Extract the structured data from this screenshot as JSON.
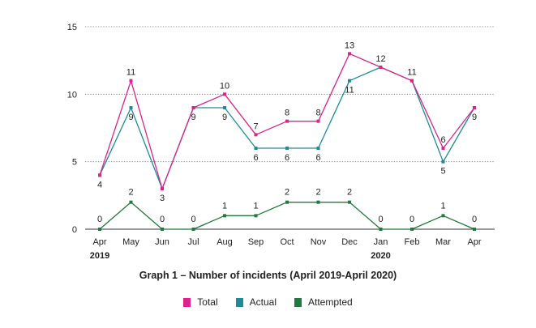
{
  "chart_data": {
    "type": "line",
    "title": "Graph 1 – Number of incidents (April 2019-April 2020)",
    "categories": [
      "Apr",
      "May",
      "Jun",
      "Jul",
      "Aug",
      "Sep",
      "Oct",
      "Nov",
      "Dec",
      "Jan",
      "Feb",
      "Mar",
      "Apr"
    ],
    "year_labels": [
      {
        "index": 0,
        "label": "2019"
      },
      {
        "index": 9,
        "label": "2020"
      }
    ],
    "series": [
      {
        "name": "Total",
        "color": "#e0218a",
        "values": [
          4,
          11,
          3,
          9,
          10,
          7,
          8,
          8,
          13,
          12,
          11,
          6,
          9
        ]
      },
      {
        "name": "Actual",
        "color": "#1e8c96",
        "values": [
          4,
          9,
          3,
          9,
          9,
          6,
          6,
          6,
          11,
          12,
          11,
          5,
          9
        ]
      },
      {
        "name": "Attempted",
        "color": "#1e7a3e",
        "values": [
          0,
          2,
          0,
          0,
          1,
          1,
          2,
          2,
          2,
          0,
          0,
          1,
          0
        ]
      }
    ],
    "y_ticks": [
      0,
      5,
      10,
      15
    ],
    "ylim": [
      0,
      15
    ],
    "grid": "horizontal-dotted",
    "legend_position": "bottom",
    "data_labels": [
      {
        "series": 0,
        "index": 0,
        "text": ""
      },
      {
        "series": 0,
        "index": 1,
        "text": "11"
      },
      {
        "series": 0,
        "index": 2,
        "text": ""
      },
      {
        "series": 0,
        "index": 3,
        "text": ""
      },
      {
        "series": 0,
        "index": 4,
        "text": "10"
      },
      {
        "series": 0,
        "index": 5,
        "text": "7"
      },
      {
        "series": 0,
        "index": 6,
        "text": "8"
      },
      {
        "series": 0,
        "index": 7,
        "text": "8"
      },
      {
        "series": 0,
        "index": 8,
        "text": "13"
      },
      {
        "series": 0,
        "index": 9,
        "text": "12"
      },
      {
        "series": 0,
        "index": 10,
        "text": "11"
      },
      {
        "series": 0,
        "index": 11,
        "text": "6"
      },
      {
        "series": 0,
        "index": 12,
        "text": ""
      },
      {
        "series": 1,
        "index": 0,
        "text": "4"
      },
      {
        "series": 1,
        "index": 1,
        "text": "9"
      },
      {
        "series": 1,
        "index": 2,
        "text": "3"
      },
      {
        "series": 1,
        "index": 3,
        "text": "9"
      },
      {
        "series": 1,
        "index": 4,
        "text": "9"
      },
      {
        "series": 1,
        "index": 5,
        "text": "6"
      },
      {
        "series": 1,
        "index": 6,
        "text": "6"
      },
      {
        "series": 1,
        "index": 7,
        "text": "6"
      },
      {
        "series": 1,
        "index": 8,
        "text": "11"
      },
      {
        "series": 1,
        "index": 9,
        "text": ""
      },
      {
        "series": 1,
        "index": 10,
        "text": ""
      },
      {
        "series": 1,
        "index": 11,
        "text": "5"
      },
      {
        "series": 1,
        "index": 12,
        "text": "9"
      },
      {
        "series": 2,
        "index": 0,
        "text": "0"
      },
      {
        "series": 2,
        "index": 1,
        "text": "2"
      },
      {
        "series": 2,
        "index": 2,
        "text": "0"
      },
      {
        "series": 2,
        "index": 3,
        "text": "0"
      },
      {
        "series": 2,
        "index": 4,
        "text": "1"
      },
      {
        "series": 2,
        "index": 5,
        "text": "1"
      },
      {
        "series": 2,
        "index": 6,
        "text": "2"
      },
      {
        "series": 2,
        "index": 7,
        "text": "2"
      },
      {
        "series": 2,
        "index": 8,
        "text": "2"
      },
      {
        "series": 2,
        "index": 9,
        "text": "0"
      },
      {
        "series": 2,
        "index": 10,
        "text": "0"
      },
      {
        "series": 2,
        "index": 11,
        "text": "1"
      },
      {
        "series": 2,
        "index": 12,
        "text": "0"
      }
    ]
  },
  "legend": [
    {
      "label": "Total",
      "color": "#e0218a"
    },
    {
      "label": "Actual",
      "color": "#1e8c96"
    },
    {
      "label": "Attempted",
      "color": "#1e7a3e"
    }
  ]
}
